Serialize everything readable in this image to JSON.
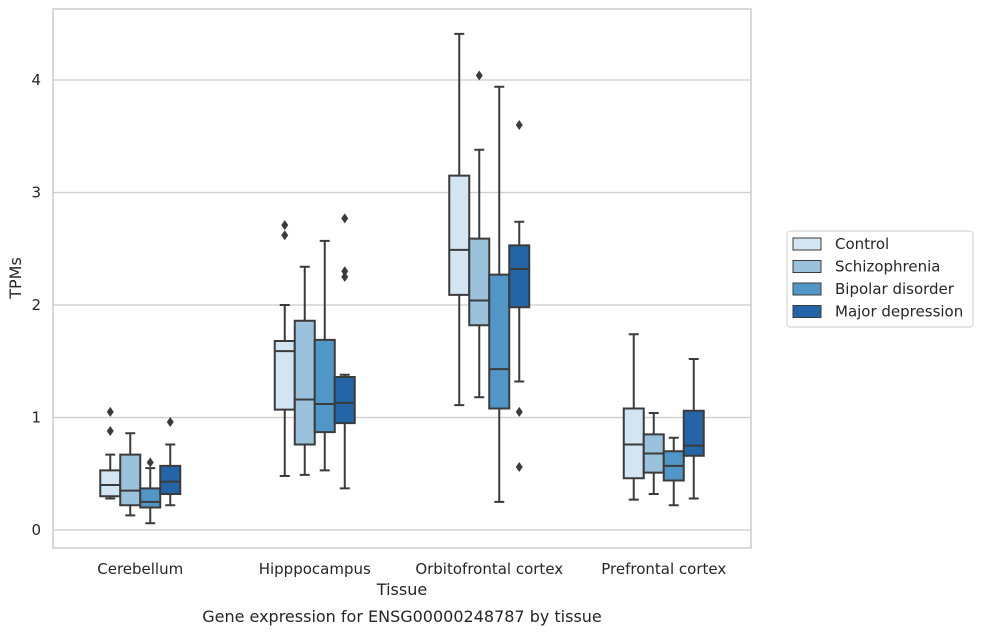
{
  "caption": "Gene expression for ENSG00000248787 by tissue",
  "chart_data": {
    "type": "boxplot",
    "xlabel": "Tissue",
    "ylabel": "TPMs",
    "ylim": [
      -0.15,
      4.63
    ],
    "yticks": [
      0,
      1,
      2,
      3,
      4
    ],
    "grid": "horizontal",
    "legend_position": "right",
    "categories": [
      "Cerebellum",
      "Hipppocampus",
      "Orbitofrontal cortex",
      "Prefrontal cortex"
    ],
    "series": [
      {
        "name": "Control",
        "color": "#d3e4f3",
        "boxes": [
          {
            "whisker_low": 0.28,
            "q1": 0.3,
            "median": 0.4,
            "q3": 0.53,
            "whisker_high": 0.67,
            "outliers": [
              0.88,
              1.05
            ]
          },
          {
            "whisker_low": 0.48,
            "q1": 1.07,
            "median": 1.59,
            "q3": 1.68,
            "whisker_high": 2.0,
            "outliers": [
              2.62,
              2.71
            ]
          },
          {
            "whisker_low": 1.11,
            "q1": 2.09,
            "median": 2.49,
            "q3": 3.15,
            "whisker_high": 4.41,
            "outliers": []
          },
          {
            "whisker_low": 0.27,
            "q1": 0.46,
            "median": 0.76,
            "q3": 1.08,
            "whisker_high": 1.74,
            "outliers": []
          }
        ]
      },
      {
        "name": "Schizophrenia",
        "color": "#9ac2dc",
        "boxes": [
          {
            "whisker_low": 0.13,
            "q1": 0.22,
            "median": 0.35,
            "q3": 0.67,
            "whisker_high": 0.86,
            "outliers": []
          },
          {
            "whisker_low": 0.49,
            "q1": 0.76,
            "median": 1.16,
            "q3": 1.86,
            "whisker_high": 2.34,
            "outliers": []
          },
          {
            "whisker_low": 1.18,
            "q1": 1.82,
            "median": 2.04,
            "q3": 2.59,
            "whisker_high": 3.38,
            "outliers": [
              4.04
            ]
          },
          {
            "whisker_low": 0.32,
            "q1": 0.51,
            "median": 0.68,
            "q3": 0.85,
            "whisker_high": 1.04,
            "outliers": []
          }
        ]
      },
      {
        "name": "Bipolar disorder",
        "color": "#5097c8",
        "boxes": [
          {
            "whisker_low": 0.06,
            "q1": 0.2,
            "median": 0.25,
            "q3": 0.37,
            "whisker_high": 0.55,
            "outliers": [
              0.6
            ]
          },
          {
            "whisker_low": 0.53,
            "q1": 0.87,
            "median": 1.12,
            "q3": 1.69,
            "whisker_high": 2.57,
            "outliers": []
          },
          {
            "whisker_low": 0.25,
            "q1": 1.08,
            "median": 1.43,
            "q3": 2.27,
            "whisker_high": 3.94,
            "outliers": []
          },
          {
            "whisker_low": 0.22,
            "q1": 0.44,
            "median": 0.57,
            "q3": 0.7,
            "whisker_high": 0.82,
            "outliers": []
          }
        ]
      },
      {
        "name": "Major depression",
        "color": "#2465a8",
        "boxes": [
          {
            "whisker_low": 0.22,
            "q1": 0.32,
            "median": 0.43,
            "q3": 0.57,
            "whisker_high": 0.76,
            "outliers": [
              0.96
            ]
          },
          {
            "whisker_low": 0.37,
            "q1": 0.95,
            "median": 1.13,
            "q3": 1.36,
            "whisker_high": 1.38,
            "outliers": [
              2.25,
              2.3,
              2.77
            ]
          },
          {
            "whisker_low": 1.32,
            "q1": 1.98,
            "median": 2.32,
            "q3": 2.53,
            "whisker_high": 2.74,
            "outliers": [
              0.56,
              1.05,
              3.6
            ]
          },
          {
            "whisker_low": 0.28,
            "q1": 0.66,
            "median": 0.75,
            "q3": 1.06,
            "whisker_high": 1.52,
            "outliers": []
          }
        ]
      }
    ]
  }
}
